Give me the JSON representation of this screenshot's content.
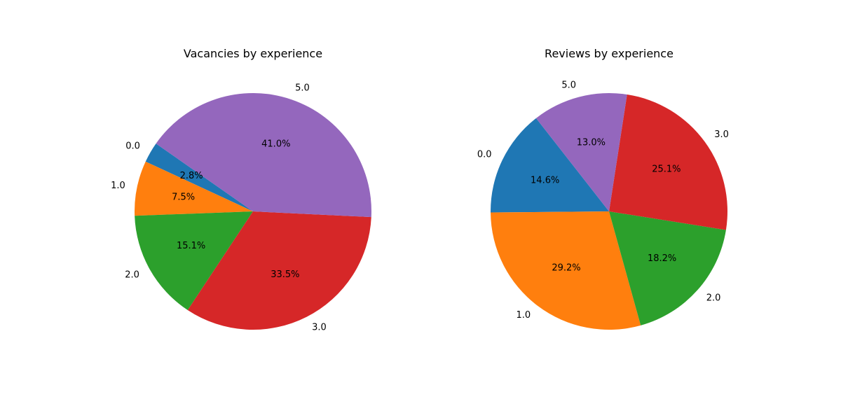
{
  "chart_data": [
    {
      "type": "pie",
      "title": "Vacancies by experience",
      "start_angle_deg": 145,
      "direction": "counterclockwise",
      "slices": [
        {
          "label": "0.0",
          "value": 2.8,
          "pct_text": "2.8%",
          "color": "#1f77b4"
        },
        {
          "label": "1.0",
          "value": 7.5,
          "pct_text": "7.5%",
          "color": "#ff7f0e"
        },
        {
          "label": "2.0",
          "value": 15.1,
          "pct_text": "15.1%",
          "color": "#2ca02c"
        },
        {
          "label": "3.0",
          "value": 33.5,
          "pct_text": "33.5%",
          "color": "#d62728"
        },
        {
          "label": "5.0",
          "value": 41.0,
          "pct_text": "41.0%",
          "color": "#9467bd"
        }
      ]
    },
    {
      "type": "pie",
      "title": "Reviews by experience",
      "start_angle_deg": 128,
      "direction": "counterclockwise",
      "slices": [
        {
          "label": "0.0",
          "value": 14.6,
          "pct_text": "14.6%",
          "color": "#1f77b4"
        },
        {
          "label": "1.0",
          "value": 29.2,
          "pct_text": "29.2%",
          "color": "#ff7f0e"
        },
        {
          "label": "2.0",
          "value": 18.2,
          "pct_text": "18.2%",
          "color": "#2ca02c"
        },
        {
          "label": "3.0",
          "value": 25.1,
          "pct_text": "25.1%",
          "color": "#d62728"
        },
        {
          "label": "5.0",
          "value": 13.0,
          "pct_text": "13.0%",
          "color": "#9467bd"
        }
      ]
    }
  ]
}
